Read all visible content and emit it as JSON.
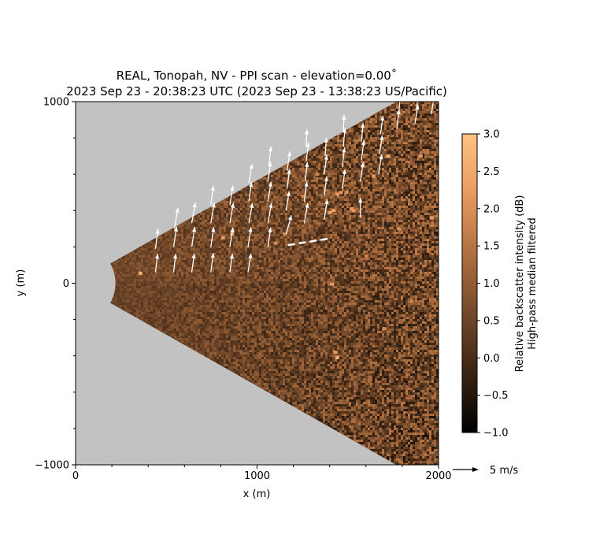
{
  "chart_data": {
    "type": "heatmap",
    "title_line1": "REAL, Tonopah, NV - PPI scan - elevation=0.00˚",
    "title_line2": "2023 Sep 23 - 20:38:23 UTC (2023 Sep 23 - 13:38:23 US/Pacific)",
    "xlabel": "x (m)",
    "ylabel": "y (m)",
    "xlim": [
      0,
      2000
    ],
    "ylim": [
      -1000,
      1000
    ],
    "xticks": [
      "0",
      "1000",
      "2000"
    ],
    "yticks": [
      "−1000",
      "0",
      "1000"
    ],
    "colorbar": {
      "label_line1": "Relative backscatter intensity (dB)",
      "label_line2": "High-pass median filtered",
      "range": [
        -1.0,
        3.0
      ],
      "ticks": [
        "−1.0",
        "−0.5",
        "0.0",
        "0.5",
        "1.0",
        "1.5",
        "2.0",
        "2.5",
        "3.0"
      ],
      "colors": [
        "#000000",
        "#3a2414",
        "#73492a",
        "#b07040",
        "#e89a60",
        "#ffc283"
      ]
    },
    "scan_sector": {
      "range_min_m": 220,
      "half_angle_deg": 29.5
    },
    "background_color": "#c2c2c2",
    "vector_legend": {
      "label": "5 m/s",
      "speed_m_s": 5
    },
    "vectors": [
      [
        440,
        60,
        0.5,
        4.2
      ],
      [
        440,
        190,
        0.6,
        4.5
      ],
      [
        540,
        60,
        0.5,
        4.2
      ],
      [
        540,
        200,
        0.7,
        4.6
      ],
      [
        545,
        300,
        0.8,
        4.8
      ],
      [
        640,
        60,
        0.6,
        4.3
      ],
      [
        640,
        200,
        0.7,
        4.5
      ],
      [
        640,
        330,
        0.8,
        4.7
      ],
      [
        745,
        60,
        0.6,
        4.4
      ],
      [
        745,
        200,
        0.7,
        4.5
      ],
      [
        745,
        330,
        0.8,
        4.7
      ],
      [
        745,
        430,
        0.6,
        4.4
      ],
      [
        850,
        60,
        0.6,
        4.2
      ],
      [
        850,
        200,
        0.7,
        4.4
      ],
      [
        850,
        330,
        0.8,
        4.6
      ],
      [
        850,
        430,
        0.7,
        4.4
      ],
      [
        950,
        60,
        0.7,
        4.3
      ],
      [
        950,
        200,
        0.7,
        4.5
      ],
      [
        955,
        330,
        0.8,
        4.6
      ],
      [
        955,
        450,
        0.6,
        4.4
      ],
      [
        955,
        550,
        0.7,
        4.4
      ],
      [
        1060,
        200,
        0.6,
        4.4
      ],
      [
        1060,
        330,
        0.8,
        4.6
      ],
      [
        1060,
        450,
        0.7,
        4.5
      ],
      [
        1060,
        560,
        0.6,
        4.5
      ],
      [
        1065,
        650,
        0.5,
        4.2
      ],
      [
        1160,
        270,
        1.2,
        4.3
      ],
      [
        1160,
        400,
        0.7,
        4.4
      ],
      [
        1165,
        520,
        0.6,
        4.5
      ],
      [
        1165,
        620,
        0.7,
        4.4
      ],
      [
        1260,
        330,
        0.8,
        4.6
      ],
      [
        1260,
        450,
        0.6,
        4.5
      ],
      [
        1265,
        560,
        0.5,
        4.4
      ],
      [
        1270,
        670,
        0.6,
        4.4
      ],
      [
        1270,
        750,
        0.2,
        4.0
      ],
      [
        1370,
        350,
        0.7,
        4.6
      ],
      [
        1370,
        480,
        0.6,
        4.5
      ],
      [
        1370,
        600,
        0.6,
        4.4
      ],
      [
        1375,
        700,
        0.3,
        4.2
      ],
      [
        1470,
        520,
        0.6,
        4.4
      ],
      [
        1470,
        640,
        0.5,
        4.4
      ],
      [
        1475,
        750,
        0.4,
        4.3
      ],
      [
        1475,
        830,
        0.2,
        4.0
      ],
      [
        1570,
        360,
        0.0,
        4.5
      ],
      [
        1570,
        560,
        0.6,
        4.4
      ],
      [
        1575,
        680,
        0.6,
        4.4
      ],
      [
        1575,
        780,
        0.4,
        4.2
      ],
      [
        1670,
        600,
        0.7,
        4.5
      ],
      [
        1675,
        710,
        0.6,
        4.3
      ],
      [
        1680,
        820,
        0.6,
        4.2
      ],
      [
        1770,
        850,
        0.5,
        4.4
      ],
      [
        1780,
        930,
        0.4,
        4.3
      ],
      [
        1870,
        880,
        0.7,
        4.3
      ],
      [
        1880,
        970,
        0.5,
        4.2
      ],
      [
        1960,
        930,
        0.7,
        4.4
      ],
      [
        1990,
        1000,
        0.3,
        4.3
      ]
    ],
    "dashed_segment": {
      "points": [
        [
          1170,
          210
        ],
        [
          1390,
          245
        ]
      ]
    },
    "hotspots": [
      [
        355,
        55,
        2.6
      ],
      [
        810,
        250,
        2.3
      ],
      [
        860,
        270,
        2.2
      ],
      [
        1400,
        390,
        2.5
      ],
      [
        1420,
        400,
        2.4
      ],
      [
        1440,
        490,
        2.2
      ],
      [
        1460,
        500,
        2.1
      ],
      [
        1490,
        500,
        2.0
      ],
      [
        1520,
        410,
        2.3
      ],
      [
        1530,
        400,
        2.2
      ],
      [
        1440,
        -410,
        2.6
      ],
      [
        1430,
        -380,
        2.2
      ],
      [
        1410,
        -5,
        2.2
      ],
      [
        1960,
        360,
        2.4
      ],
      [
        1720,
        700,
        2.6
      ],
      [
        1640,
        590,
        2.2
      ],
      [
        1150,
        270,
        1.9
      ],
      [
        1100,
        220,
        1.9
      ],
      [
        1250,
        480,
        1.8
      ],
      [
        1330,
        600,
        1.8
      ],
      [
        1780,
        300,
        2.0
      ],
      [
        1850,
        -100,
        1.8
      ],
      [
        1700,
        -250,
        1.9
      ],
      [
        1600,
        150,
        1.8
      ],
      [
        1900,
        700,
        2.1
      ]
    ]
  }
}
